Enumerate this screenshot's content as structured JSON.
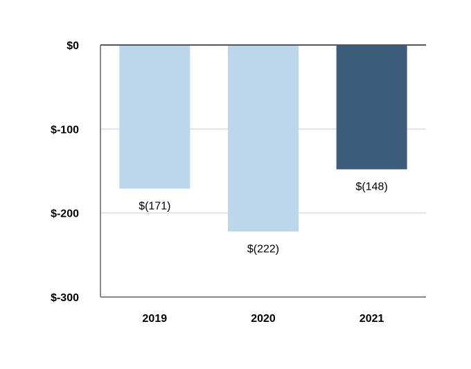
{
  "chart_data": {
    "type": "bar",
    "categories": [
      "2019",
      "2020",
      "2021"
    ],
    "values": [
      -171,
      -222,
      -148
    ],
    "value_labels": [
      "$(171)",
      "$(222)",
      "$(148)"
    ],
    "ylim": [
      -300,
      0
    ],
    "yticks": [
      0,
      -100,
      -200,
      -300
    ],
    "ytick_labels": [
      "$0",
      "$-100",
      "$-200",
      "$-300"
    ],
    "grid": true,
    "title": "",
    "xlabel": "",
    "ylabel": "",
    "colors": {
      "bars": [
        "#bcd7ea",
        "#bcd7ea",
        "#3d5c7c"
      ],
      "grid": "#e3e3e3",
      "axis": "#888888",
      "zero_line": "#555555"
    }
  }
}
